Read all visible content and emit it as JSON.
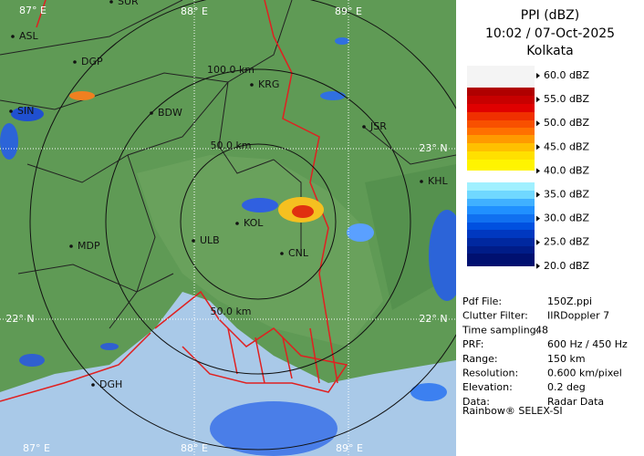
{
  "header": {
    "title": "PPI (dBZ)",
    "time": "10:02 / 07-Oct-2025",
    "station": "Kolkata"
  },
  "legend": {
    "labels": [
      "60.0 dBZ",
      "55.0 dBZ",
      "50.0 dBZ",
      "45.0 dBZ",
      "40.0 dBZ",
      "35.0 dBZ",
      "30.0 dBZ",
      "25.0 dBZ",
      "20.0 dBZ"
    ]
  },
  "info": {
    "rows": [
      [
        "Pdf File:",
        "150Z.ppi"
      ],
      [
        "Clutter Filter:",
        "IIRDoppler 7"
      ],
      [
        "Time sampling:",
        "48"
      ],
      [
        "PRF:",
        "600 Hz / 450 Hz"
      ],
      [
        "Range:",
        "150 km"
      ],
      [
        "Resolution:",
        "0.600 km/pixel"
      ],
      [
        "Elevation:",
        "0.2 deg"
      ],
      [
        "Data:",
        "Radar Data"
      ]
    ],
    "footer": "Rainbow® SELEX-SI"
  },
  "map": {
    "places": [
      "SUR",
      "ASL",
      "DGP",
      "SIN",
      "KRG",
      "BDW",
      "JSR",
      "KHL",
      "MDP",
      "ULB",
      "KOL",
      "CNL",
      "DGH"
    ],
    "range_rings": [
      "100.0 km",
      "50.0 km",
      "50.0 km"
    ],
    "grid_labels": [
      "87° E",
      "88° E",
      "89° E",
      "23° N",
      "22° N",
      "22° N",
      "87° E",
      "88° E",
      "89° E"
    ]
  }
}
